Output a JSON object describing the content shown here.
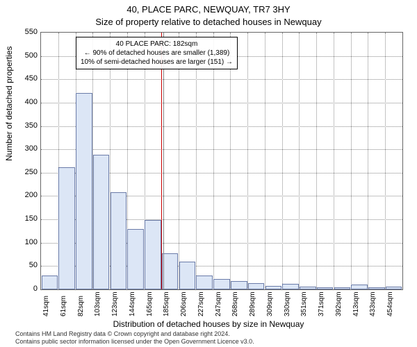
{
  "header": {
    "title_line1": "40, PLACE PARC, NEWQUAY, TR7 3HY",
    "title_line2": "Size of property relative to detached houses in Newquay"
  },
  "chart": {
    "type": "histogram",
    "ylabel": "Number of detached properties",
    "xlabel": "Distribution of detached houses by size in Newquay",
    "background_color": "#ffffff",
    "grid_color": "#888888",
    "grid_style": "dotted",
    "border_color": "#666666",
    "ylim": [
      0,
      550
    ],
    "ytick_step": 50,
    "yticks": [
      0,
      50,
      100,
      150,
      200,
      250,
      300,
      350,
      400,
      450,
      500,
      550
    ],
    "xticks": [
      "41sqm",
      "61sqm",
      "82sqm",
      "103sqm",
      "123sqm",
      "144sqm",
      "165sqm",
      "185sqm",
      "206sqm",
      "227sqm",
      "247sqm",
      "268sqm",
      "289sqm",
      "309sqm",
      "330sqm",
      "351sqm",
      "371sqm",
      "392sqm",
      "413sqm",
      "433sqm",
      "454sqm"
    ],
    "bar_color": "#dce6f6",
    "bar_border": "#6a7ba8",
    "bar_width": 0.95,
    "bars": [
      30,
      262,
      420,
      288,
      208,
      130,
      148,
      78,
      60,
      30,
      22,
      18,
      14,
      8,
      12,
      6,
      5,
      5,
      10,
      4,
      6
    ],
    "marker": {
      "value_x_index": 7,
      "line_color": "#cc0000",
      "secondary_line_color": "#888888"
    },
    "annotation": {
      "line1": "40 PLACE PARC: 182sqm",
      "line2": "← 90% of detached houses are smaller (1,389)",
      "line3": "10% of semi-detached houses are larger (151) →"
    },
    "label_fontsize": 12,
    "tick_fontsize": 11,
    "xtick_fontsize": 10
  },
  "footer": {
    "line1": "Contains HM Land Registry data © Crown copyright and database right 2024.",
    "line2": "Contains public sector information licensed under the Open Government Licence v3.0."
  }
}
